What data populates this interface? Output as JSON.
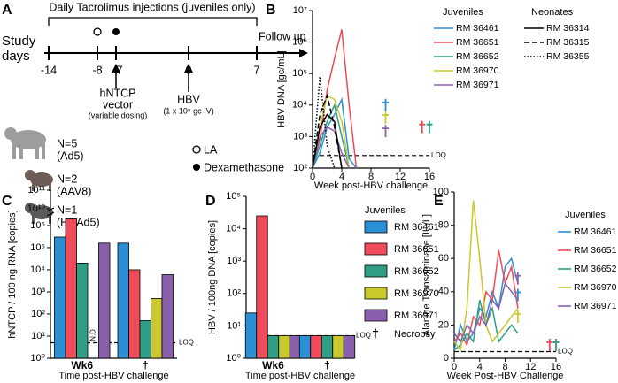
{
  "timeline": {
    "panel_label": "A",
    "bracket_label": "Daily Tacrolimus injections (juveniles only)",
    "axis_label": [
      "Study",
      "days"
    ],
    "days": [
      "-14",
      "-8",
      "-7",
      "0",
      "7"
    ],
    "follow_up": "Follow up",
    "vector": [
      "hNTCP",
      "vector",
      "(variable dosing)"
    ],
    "hbv": [
      "HBV",
      "(1 x 10⁹ gc IV)"
    ],
    "cohorts": [
      [
        "N=5",
        "(Ad5)"
      ],
      [
        "N=2",
        "(AAV8)"
      ],
      [
        "N=1",
        "(HDAd5)"
      ]
    ],
    "legend": [
      "LA",
      "Dexamethasone"
    ]
  },
  "chart_data": [
    {
      "type": "line",
      "panel_label": "B",
      "y_label": "HBV DNA [gc/mL]",
      "x_label": "Week post-HBV challenge",
      "log_y": true,
      "x": [
        0,
        1,
        2,
        3,
        4,
        5,
        6,
        7,
        8,
        9,
        10,
        11,
        12,
        13,
        14,
        15,
        16
      ],
      "xlim": [
        0,
        16
      ],
      "xticks": [
        0,
        4,
        8,
        12,
        16
      ],
      "ylim": [
        100,
        10000000
      ],
      "yticks": [
        {
          "value": 100,
          "label": "10²"
        },
        {
          "value": 1000,
          "label": "10³"
        },
        {
          "value": 10000,
          "label": "10⁴"
        },
        {
          "value": 100000,
          "label": "10⁵"
        },
        {
          "value": 1000000,
          "label": "10⁶"
        },
        {
          "value": 10000000,
          "label": "10⁷"
        }
      ],
      "loq": {
        "value": 250,
        "label": "LOQ"
      },
      "series_groups": [
        {
          "title": "Juveniles",
          "series": [
            {
              "name": "RM 36461",
              "color": "#2b8fd6",
              "values": [
                100,
                300,
                2000,
                5000,
                15000,
                200,
                100,
                null,
                null,
                null,
                null,
                null,
                null,
                null,
                null,
                null,
                null
              ],
              "necropsy": {
                "x": 10,
                "y": 10000
              }
            },
            {
              "name": "RM 36651",
              "color": "#ef4b5a",
              "values": [
                100,
                800,
                30000,
                300000,
                2500000,
                10000,
                100,
                null,
                null,
                null,
                null,
                null,
                null,
                null,
                null,
                null,
                null
              ],
              "necropsy": {
                "x": 15,
                "y": 2000
              }
            },
            {
              "name": "RM 36652",
              "color": "#2f9e84",
              "values": [
                100,
                500,
                3000,
                10000,
                1000,
                100,
                null,
                null,
                null,
                null,
                null,
                null,
                null,
                null,
                null,
                null,
                null
              ],
              "necropsy": {
                "x": 16,
                "y": 2000
              }
            },
            {
              "name": "RM 36970",
              "color": "#c9c92e",
              "values": [
                100,
                2000,
                20000,
                15000,
                3000,
                100,
                null,
                null,
                null,
                null,
                null,
                null,
                null,
                null,
                null,
                null,
                null
              ],
              "necropsy": {
                "x": 10,
                "y": 4000
              }
            },
            {
              "name": "RM 36971",
              "color": "#8a60ad",
              "values": [
                100,
                1000,
                2000,
                1500,
                300,
                100,
                null,
                null,
                null,
                null,
                null,
                null,
                null,
                null,
                null,
                null,
                null
              ],
              "necropsy": {
                "x": 10,
                "y": 1500
              }
            }
          ]
        },
        {
          "title": "Neonates",
          "series": [
            {
              "name": "RM 36314",
              "color": "#000000",
              "dash": "solid",
              "values": [
                100,
                2000,
                5000,
                3000,
                100,
                null,
                null,
                null,
                null,
                null,
                null,
                null,
                null,
                null,
                null,
                null,
                null
              ]
            },
            {
              "name": "RM 36315",
              "color": "#000000",
              "dash": "dashed",
              "values": [
                100,
                5000,
                20000,
                2000,
                100,
                null,
                null,
                null,
                null,
                null,
                null,
                null,
                null,
                null,
                null,
                null,
                null
              ]
            },
            {
              "name": "RM 36355",
              "color": "#000000",
              "dash": "dotted",
              "values": [
                100,
                80000,
                500,
                100,
                null,
                null,
                null,
                null,
                null,
                null,
                null,
                null,
                null,
                null,
                null,
                null,
                null
              ]
            }
          ]
        }
      ]
    },
    {
      "type": "bar",
      "panel_label": "C",
      "y_label": "hNTCP / 100 ng RNA [copies]",
      "x_label": "Time post-HBV challenge",
      "log_y": true,
      "categories": [
        "Wk6",
        "†"
      ],
      "ylim": [
        1,
        100000000000
      ],
      "axis_break": [
        3000000,
        10000000000
      ],
      "yticks": [
        {
          "value": 1,
          "label": "10⁰"
        },
        {
          "value": 10,
          "label": "10¹"
        },
        {
          "value": 100,
          "label": "10²"
        },
        {
          "value": 1000,
          "label": "10³"
        },
        {
          "value": 10000,
          "label": "10⁴"
        },
        {
          "value": 100000,
          "label": "10⁵"
        },
        {
          "value": 1000000,
          "label": "10⁶"
        },
        {
          "value": 10000000000,
          "label": "10¹⁰"
        },
        {
          "value": 100000000000,
          "label": "10¹¹"
        }
      ],
      "loq": {
        "value": 5,
        "label": "LOQ"
      },
      "nd_label": "N.D",
      "series": [
        {
          "color": "#2b8fd6",
          "values": [
            300000,
            160000
          ]
        },
        {
          "color": "#ef4b5a",
          "values": [
            2000000,
            10000
          ]
        },
        {
          "color": "#2f9e84",
          "values": [
            20000,
            50
          ]
        },
        {
          "color": "#c9c92e",
          "values": [
            null,
            500
          ]
        },
        {
          "color": "#8a60ad",
          "values": [
            160000,
            6000
          ]
        }
      ]
    },
    {
      "type": "bar",
      "panel_label": "D",
      "y_label": "HBV / 100ng DNA [copies]",
      "x_label": "Time post-HBV challenge",
      "log_y": true,
      "categories": [
        "Wk6",
        "†"
      ],
      "ylim": [
        1,
        100000
      ],
      "yticks": [
        {
          "value": 1,
          "label": "10⁰"
        },
        {
          "value": 10,
          "label": "10¹"
        },
        {
          "value": 100,
          "label": "10²"
        },
        {
          "value": 1000,
          "label": "10³"
        },
        {
          "value": 10000,
          "label": "10⁴"
        },
        {
          "value": 100000,
          "label": "10⁵"
        }
      ],
      "loq": {
        "value": 5,
        "label": "LOQ"
      },
      "legend_title": "Juveniles",
      "necropsy_legend": {
        "symbol": "†",
        "label": "Necropsy"
      },
      "series": [
        {
          "name": "RM 36461",
          "color": "#2b8fd6",
          "values": [
            25,
            5
          ]
        },
        {
          "name": "RM 36651",
          "color": "#ef4b5a",
          "values": [
            25000,
            5
          ]
        },
        {
          "name": "RM 36652",
          "color": "#2f9e84",
          "values": [
            5,
            5
          ]
        },
        {
          "name": "RM 36970",
          "color": "#c9c92e",
          "values": [
            5,
            5
          ]
        },
        {
          "name": "RM 36971",
          "color": "#8a60ad",
          "values": [
            5,
            5
          ]
        }
      ]
    },
    {
      "type": "line",
      "panel_label": "E",
      "y_label": "Alanine Transaminase [IU/L]",
      "x_label": "Week Post-HBV Challenge",
      "x": [
        0,
        1,
        2,
        3,
        4,
        5,
        6,
        7,
        8,
        9,
        10,
        11,
        12,
        13,
        14,
        15,
        16
      ],
      "xlim": [
        0,
        16
      ],
      "xticks": [
        0,
        4,
        8,
        12,
        16
      ],
      "ylim": [
        0,
        100
      ],
      "yticks": [
        0,
        20,
        40,
        60,
        80,
        100
      ],
      "loq": {
        "value": 4,
        "label": "LOQ"
      },
      "legend_title": "Juveniles",
      "series": [
        {
          "name": "RM 36461",
          "color": "#2b8fd6",
          "values": [
            5,
            20,
            10,
            15,
            30,
            25,
            40,
            30,
            55,
            60,
            45,
            null,
            null,
            null,
            null,
            null,
            null
          ],
          "necropsy": {
            "x": 10,
            "y": 38
          }
        },
        {
          "name": "RM 36651",
          "color": "#ef4b5a",
          "values": [
            10,
            15,
            8,
            25,
            20,
            40,
            35,
            65,
            45,
            55,
            30,
            null,
            null,
            null,
            null,
            null,
            null
          ],
          "necropsy": {
            "x": 15,
            "y": 8
          }
        },
        {
          "name": "RM 36652",
          "color": "#2f9e84",
          "values": [
            5,
            8,
            15,
            10,
            35,
            20,
            30,
            10,
            15,
            20,
            15,
            null,
            null,
            null,
            null,
            null,
            null
          ],
          "necropsy": {
            "x": 16,
            "y": 8
          }
        },
        {
          "name": "RM 36970",
          "color": "#c9c92e",
          "values": [
            10,
            5,
            30,
            95,
            60,
            20,
            10,
            15,
            20,
            25,
            30,
            null,
            null,
            null,
            null,
            null,
            null
          ],
          "necropsy": {
            "x": 10,
            "y": 25
          }
        },
        {
          "name": "RM 36971",
          "color": "#8a60ad",
          "values": [
            15,
            10,
            20,
            15,
            25,
            20,
            35,
            30,
            45,
            40,
            35,
            null,
            null,
            null,
            null,
            null,
            null
          ],
          "necropsy": {
            "x": 10,
            "y": 48
          }
        }
      ]
    }
  ]
}
